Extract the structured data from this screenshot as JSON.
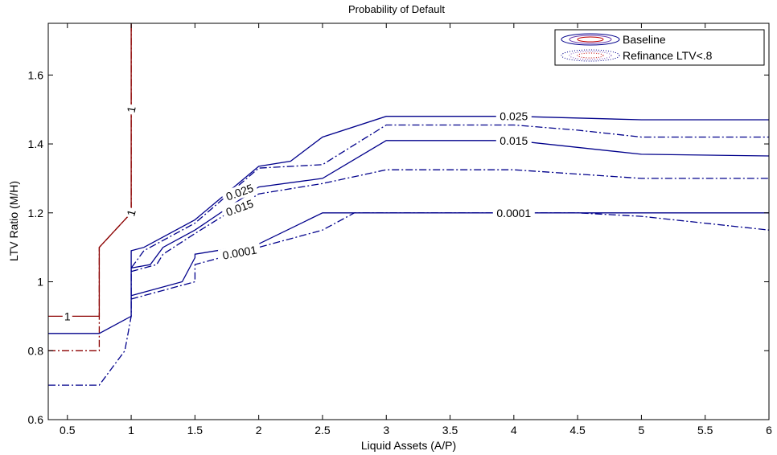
{
  "chart_data": {
    "type": "line",
    "title": "Probability of Default",
    "xlabel": "Liquid Assets (A/P)",
    "ylabel": "LTV Ratio (M/H)",
    "xlim": [
      0.35,
      6.0
    ],
    "ylim": [
      0.6,
      1.75
    ],
    "xticks": [
      0.5,
      1,
      1.5,
      2,
      2.5,
      3,
      3.5,
      4,
      4.5,
      5,
      5.5,
      6
    ],
    "yticks": [
      0.6,
      0.8,
      1,
      1.2,
      1.4,
      1.6
    ],
    "legend_position": "top-right",
    "legend": [
      {
        "label": "Baseline",
        "style": "solid",
        "color": "#00008b"
      },
      {
        "label": "Refinance LTV<.8",
        "style": "dash-dot",
        "color": "#00008b"
      }
    ],
    "series": [
      {
        "level": "1",
        "group": "Baseline",
        "style": "solid",
        "color": "#8b0000",
        "points": [
          [
            0.35,
            0.9
          ],
          [
            0.75,
            0.9
          ],
          [
            0.75,
            1.1
          ],
          [
            1.0,
            1.2
          ],
          [
            1.0,
            1.75
          ]
        ]
      },
      {
        "level": "1",
        "group": "Refinance LTV<.8",
        "style": "dash-dot",
        "color": "#8b0000",
        "points": [
          [
            0.35,
            0.8
          ],
          [
            0.75,
            0.8
          ],
          [
            0.75,
            1.1
          ],
          [
            1.0,
            1.2
          ],
          [
            1.0,
            1.75
          ]
        ]
      },
      {
        "level": "0.025",
        "group": "Baseline",
        "style": "solid",
        "color": "#00008b",
        "points": [
          [
            0.35,
            0.85
          ],
          [
            0.75,
            0.85
          ],
          [
            1.0,
            0.9
          ],
          [
            1.0,
            1.09
          ],
          [
            1.1,
            1.1
          ],
          [
            1.5,
            1.18
          ],
          [
            2.0,
            1.335
          ],
          [
            2.25,
            1.35
          ],
          [
            2.5,
            1.42
          ],
          [
            3.0,
            1.48
          ],
          [
            4.0,
            1.48
          ],
          [
            5.0,
            1.47
          ],
          [
            6.0,
            1.47
          ]
        ]
      },
      {
        "level": "0.025",
        "group": "Refinance LTV<.8",
        "style": "dash-dot",
        "color": "#00008b",
        "points": [
          [
            0.35,
            0.7
          ],
          [
            0.75,
            0.7
          ],
          [
            0.95,
            0.8
          ],
          [
            1.0,
            0.9
          ],
          [
            1.0,
            1.04
          ],
          [
            1.1,
            1.09
          ],
          [
            1.5,
            1.17
          ],
          [
            2.0,
            1.33
          ],
          [
            2.5,
            1.34
          ],
          [
            3.0,
            1.455
          ],
          [
            4.0,
            1.455
          ],
          [
            4.5,
            1.44
          ],
          [
            5.0,
            1.42
          ],
          [
            6.0,
            1.42
          ]
        ]
      },
      {
        "level": "0.015",
        "group": "Baseline",
        "style": "solid",
        "color": "#00008b",
        "points": [
          [
            1.0,
            1.04
          ],
          [
            1.15,
            1.05
          ],
          [
            1.25,
            1.1
          ],
          [
            1.5,
            1.15
          ],
          [
            2.0,
            1.275
          ],
          [
            2.5,
            1.3
          ],
          [
            3.0,
            1.41
          ],
          [
            4.0,
            1.41
          ],
          [
            5.0,
            1.37
          ],
          [
            6.0,
            1.365
          ]
        ]
      },
      {
        "level": "0.015",
        "group": "Refinance LTV<.8",
        "style": "dash-dot",
        "color": "#00008b",
        "points": [
          [
            1.0,
            1.03
          ],
          [
            1.2,
            1.05
          ],
          [
            1.25,
            1.08
          ],
          [
            1.5,
            1.14
          ],
          [
            2.0,
            1.255
          ],
          [
            2.5,
            1.285
          ],
          [
            3.0,
            1.325
          ],
          [
            4.0,
            1.325
          ],
          [
            5.0,
            1.3
          ],
          [
            6.0,
            1.3
          ]
        ]
      },
      {
        "level": "0.0001",
        "group": "Baseline",
        "style": "solid",
        "color": "#00008b",
        "points": [
          [
            1.0,
            0.96
          ],
          [
            1.4,
            1.0
          ],
          [
            1.5,
            1.07
          ],
          [
            1.5,
            1.08
          ],
          [
            2.0,
            1.11
          ],
          [
            2.5,
            1.2
          ],
          [
            3.0,
            1.2
          ],
          [
            4.0,
            1.2
          ],
          [
            5.0,
            1.2
          ],
          [
            6.0,
            1.2
          ]
        ]
      },
      {
        "level": "0.0001",
        "group": "Refinance LTV<.8",
        "style": "dash-dot",
        "color": "#00008b",
        "points": [
          [
            1.0,
            0.95
          ],
          [
            1.5,
            1.0
          ],
          [
            1.5,
            1.05
          ],
          [
            2.0,
            1.1
          ],
          [
            2.5,
            1.15
          ],
          [
            2.75,
            1.2
          ],
          [
            3.0,
            1.2
          ],
          [
            4.5,
            1.2
          ],
          [
            5.0,
            1.19
          ],
          [
            6.0,
            1.15
          ]
        ]
      }
    ],
    "contour_labels": [
      {
        "text": "1",
        "x": 0.5,
        "y": 0.9,
        "rotate": 0
      },
      {
        "text": "1",
        "x": 1.0,
        "y": 1.2,
        "rotate": -75
      },
      {
        "text": "1",
        "x": 1.0,
        "y": 1.5,
        "rotate": -80
      },
      {
        "text": "0.025",
        "x": 4.0,
        "y": 1.48,
        "rotate": 0
      },
      {
        "text": "0.015",
        "x": 4.0,
        "y": 1.41,
        "rotate": 0
      },
      {
        "text": "0.0001",
        "x": 4.0,
        "y": 1.2,
        "rotate": 0
      },
      {
        "text": "0.025",
        "x": 1.85,
        "y": 1.26,
        "rotate": -20
      },
      {
        "text": "0.015",
        "x": 1.85,
        "y": 1.215,
        "rotate": -20
      },
      {
        "text": "0.0001",
        "x": 1.85,
        "y": 1.085,
        "rotate": -10
      }
    ]
  }
}
